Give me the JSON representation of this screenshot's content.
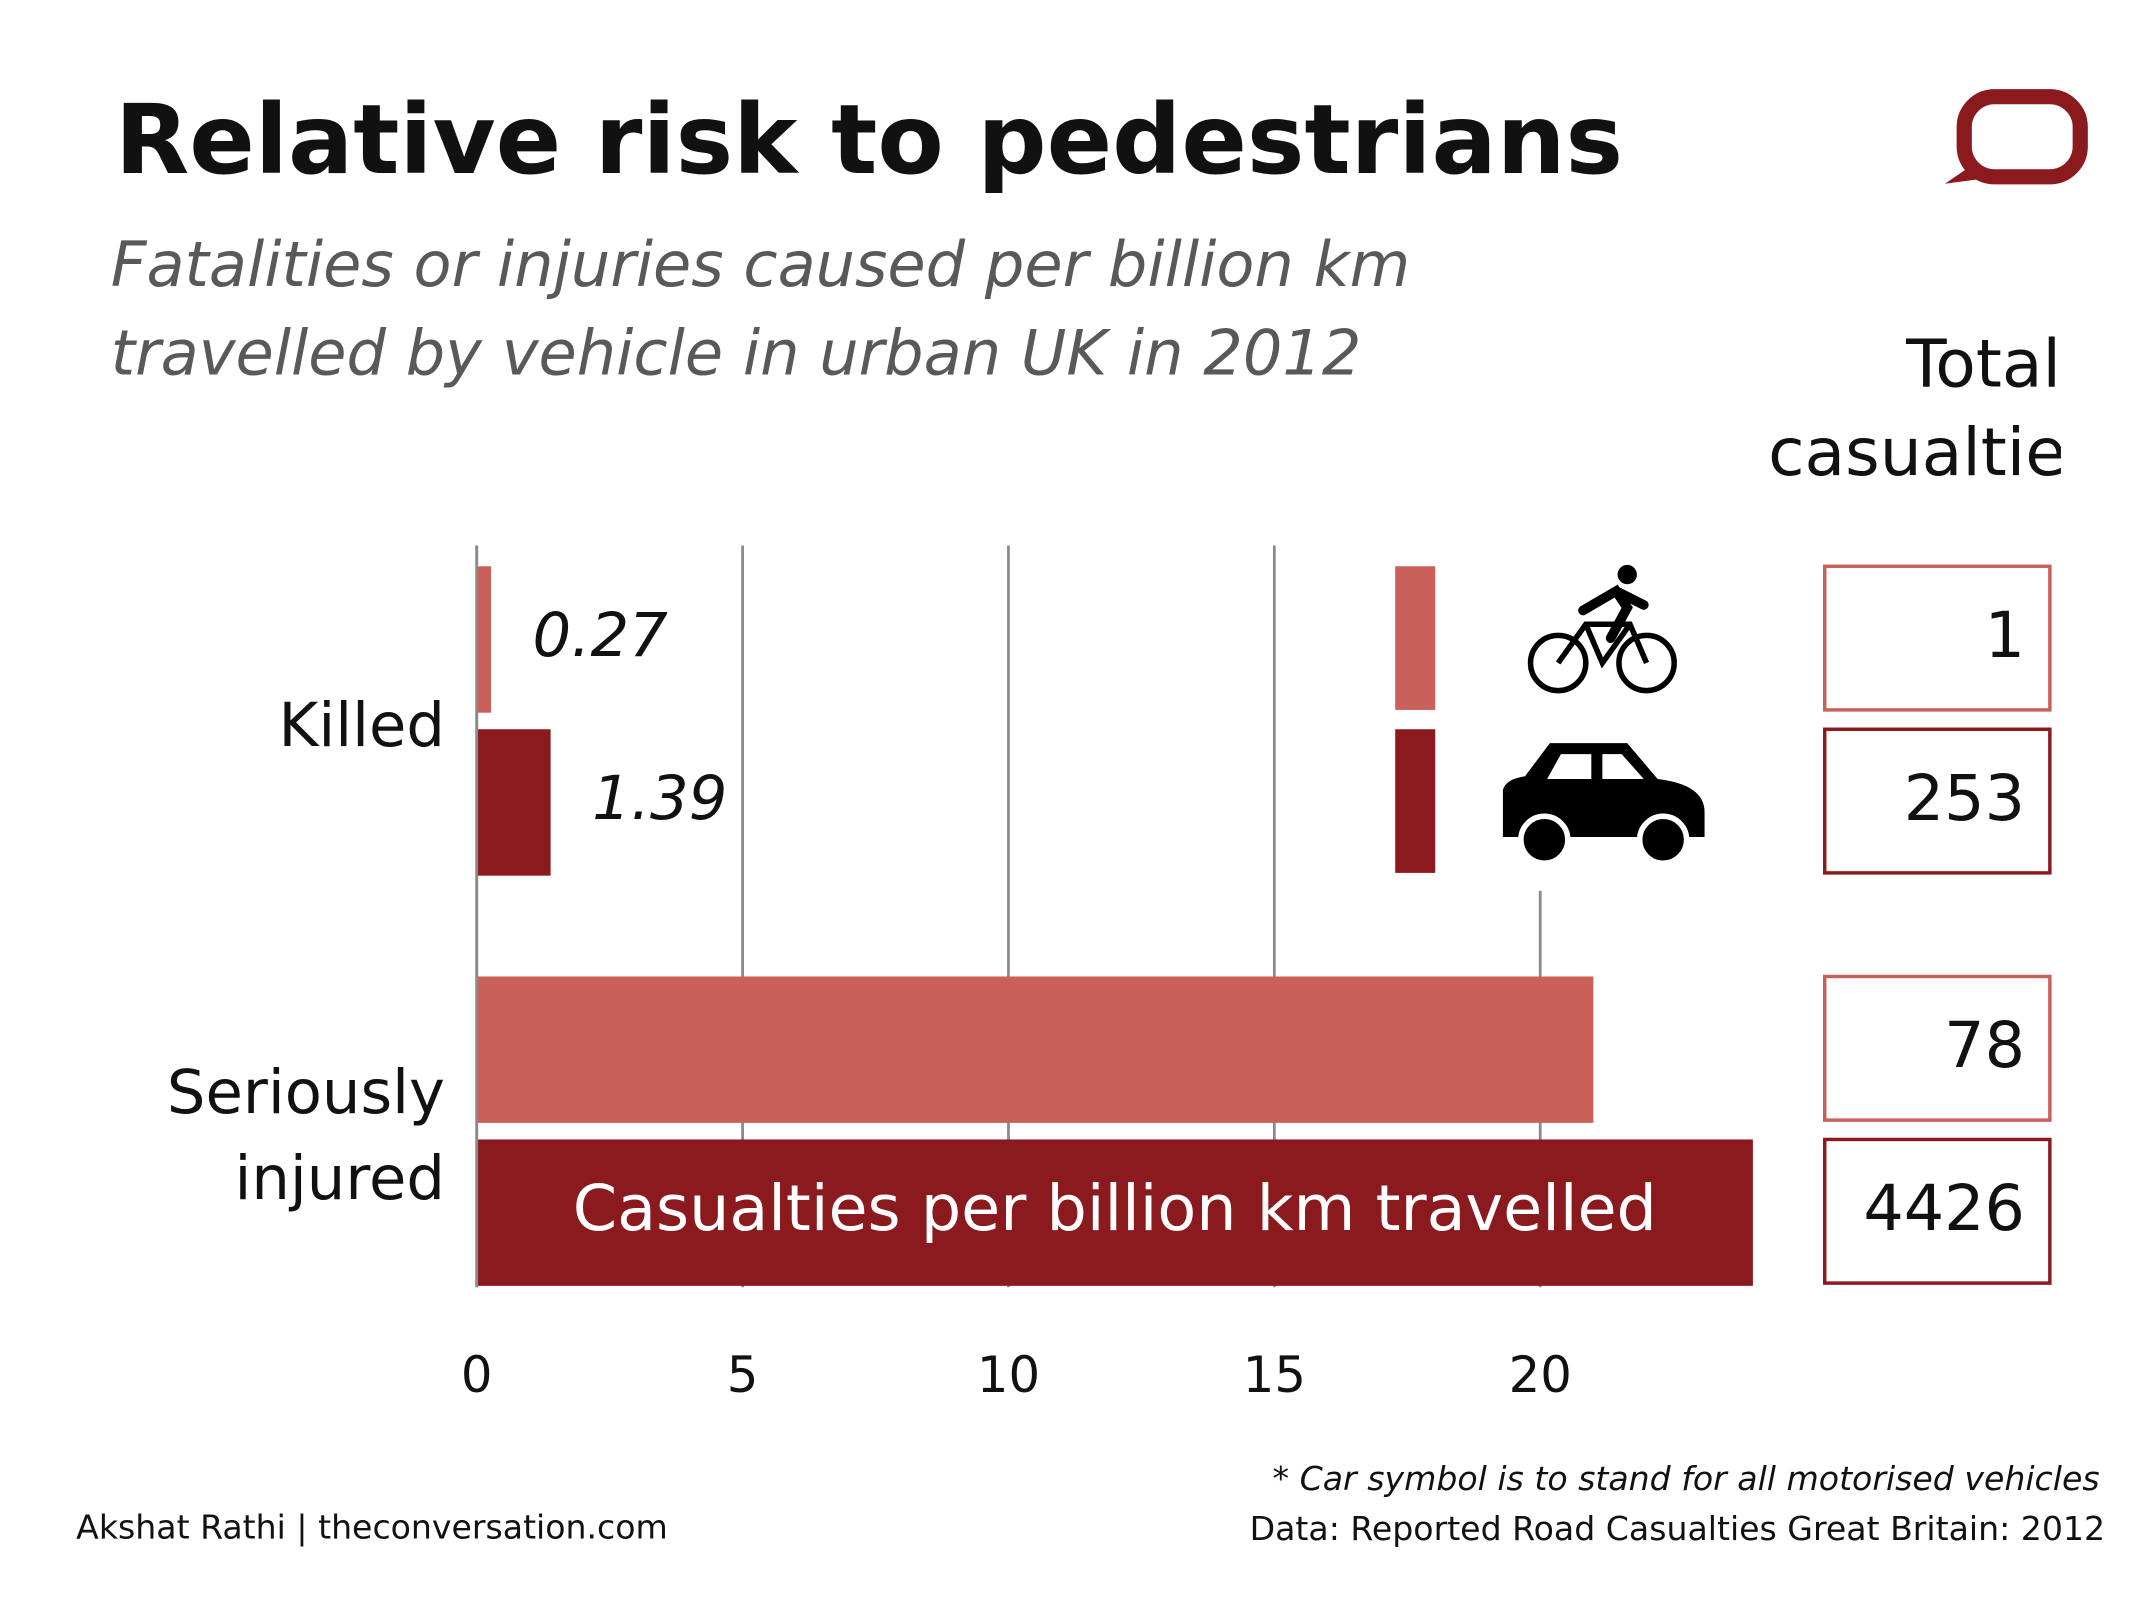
{
  "chart_data": {
    "type": "bar",
    "orientation": "horizontal",
    "title": "Relative risk to pedestrians",
    "subtitle": "Fatalities or injuries caused per billion km travelled by vehicle in urban UK in 2012",
    "categories": [
      "Killed",
      "Seriously injured"
    ],
    "series": [
      {
        "color": "#c9605a",
        "icon": "bicycle",
        "values": [
          0.27,
          21
        ],
        "value_labels": [
          "0.27",
          null
        ],
        "totals": [
          1,
          78
        ]
      },
      {
        "color": "#8b1a1f",
        "icon": "car",
        "values": [
          1.39,
          24
        ],
        "value_labels": [
          "1.39",
          null
        ],
        "totals": [
          253,
          4426
        ]
      }
    ],
    "xlim": [
      0,
      24
    ],
    "xticks": [
      0,
      5,
      10,
      15,
      20
    ],
    "grid": true,
    "totals_title": "Total casualties",
    "bar_annotation": "Casualties per billion km travelled",
    "footnote": "* Car symbol is to stand for all motorised vehicles",
    "source": "Data: Reported Road Casualties Great Britain: 2012",
    "credit": "Akshat Rathi | theconversation.com"
  }
}
